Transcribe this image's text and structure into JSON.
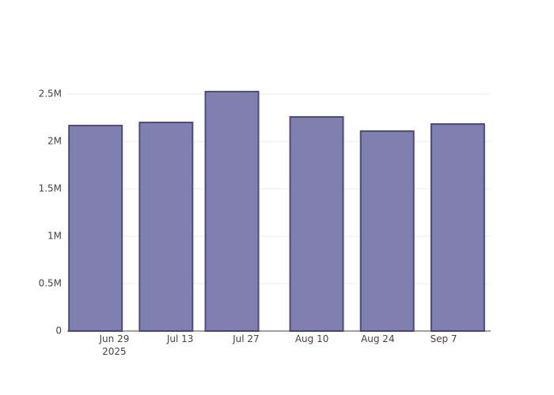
{
  "chart_data": {
    "type": "bar",
    "x": [
      "2025-06-25",
      "2025-07-10",
      "2025-07-24",
      "2025-08-11",
      "2025-08-26",
      "2025-09-10"
    ],
    "values": [
      2167000,
      2200000,
      2525000,
      2258000,
      2108000,
      2183000
    ],
    "color": "#7f7fb0",
    "line_color": "#4b4b86",
    "xlim": [
      "2025-06-19",
      "2025-09-17"
    ],
    "xticks": [
      {
        "value": "2025-06-29",
        "label": "Jun 29\n2025"
      },
      {
        "value": "2025-07-13",
        "label": "Jul 13"
      },
      {
        "value": "2025-07-27",
        "label": "Jul 27"
      },
      {
        "value": "2025-08-10",
        "label": "Aug 10"
      },
      {
        "value": "2025-08-24",
        "label": "Aug 24"
      },
      {
        "value": "2025-09-07",
        "label": "Sep 7"
      }
    ],
    "ylim": [
      0,
      2658000
    ],
    "yticks": [
      0,
      {
        "value": 500000,
        "label": "0.5M"
      },
      {
        "value": 1000000,
        "label": "1M"
      },
      {
        "value": 1500000,
        "label": "1.5M"
      },
      {
        "value": 2000000,
        "label": "2M"
      },
      {
        "value": 2500000,
        "label": "2.5M"
      }
    ],
    "grid": true
  }
}
